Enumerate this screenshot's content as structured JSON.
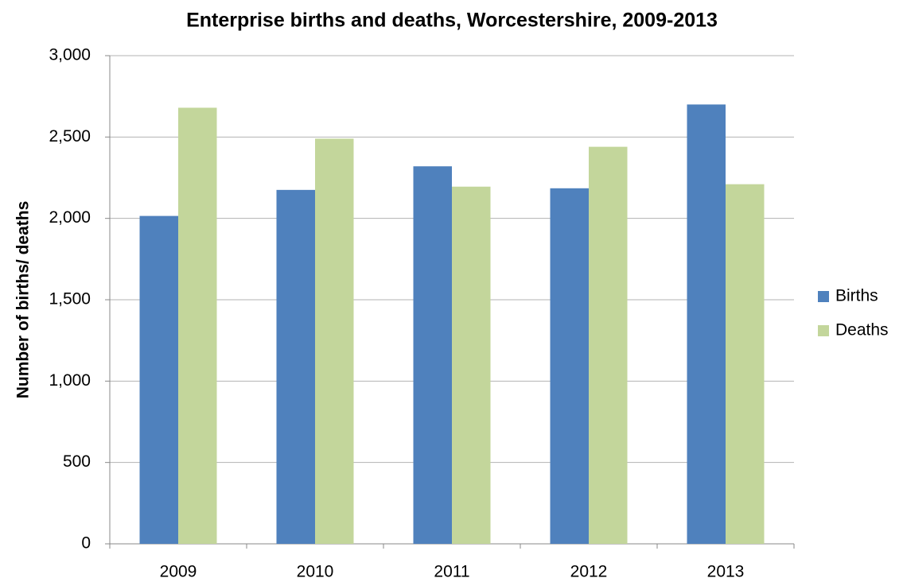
{
  "chart_data": {
    "type": "bar",
    "title": "Enterprise births and deaths, Worcestershire, 2009-2013",
    "y_label": "Number of births/ deaths",
    "categories": [
      "2009",
      "2010",
      "2011",
      "2012",
      "2013"
    ],
    "series": [
      {
        "name": "Births",
        "color": "#4f81bd",
        "values": [
          2015,
          2175,
          2320,
          2185,
          2700
        ]
      },
      {
        "name": "Deaths",
        "color": "#c3d69b",
        "values": [
          2680,
          2490,
          2195,
          2440,
          2210
        ]
      }
    ],
    "ylim": [
      0,
      3000
    ],
    "yticks": [
      0,
      500,
      {
        "value": 1000,
        "label": "1,000"
      },
      {
        "value": 1500,
        "label": "1,500"
      },
      {
        "value": 2000,
        "label": "2,000"
      },
      {
        "value": 2500,
        "label": "2,500"
      },
      {
        "value": 3000,
        "label": "3,000"
      }
    ],
    "grid": true,
    "legend": "right"
  }
}
